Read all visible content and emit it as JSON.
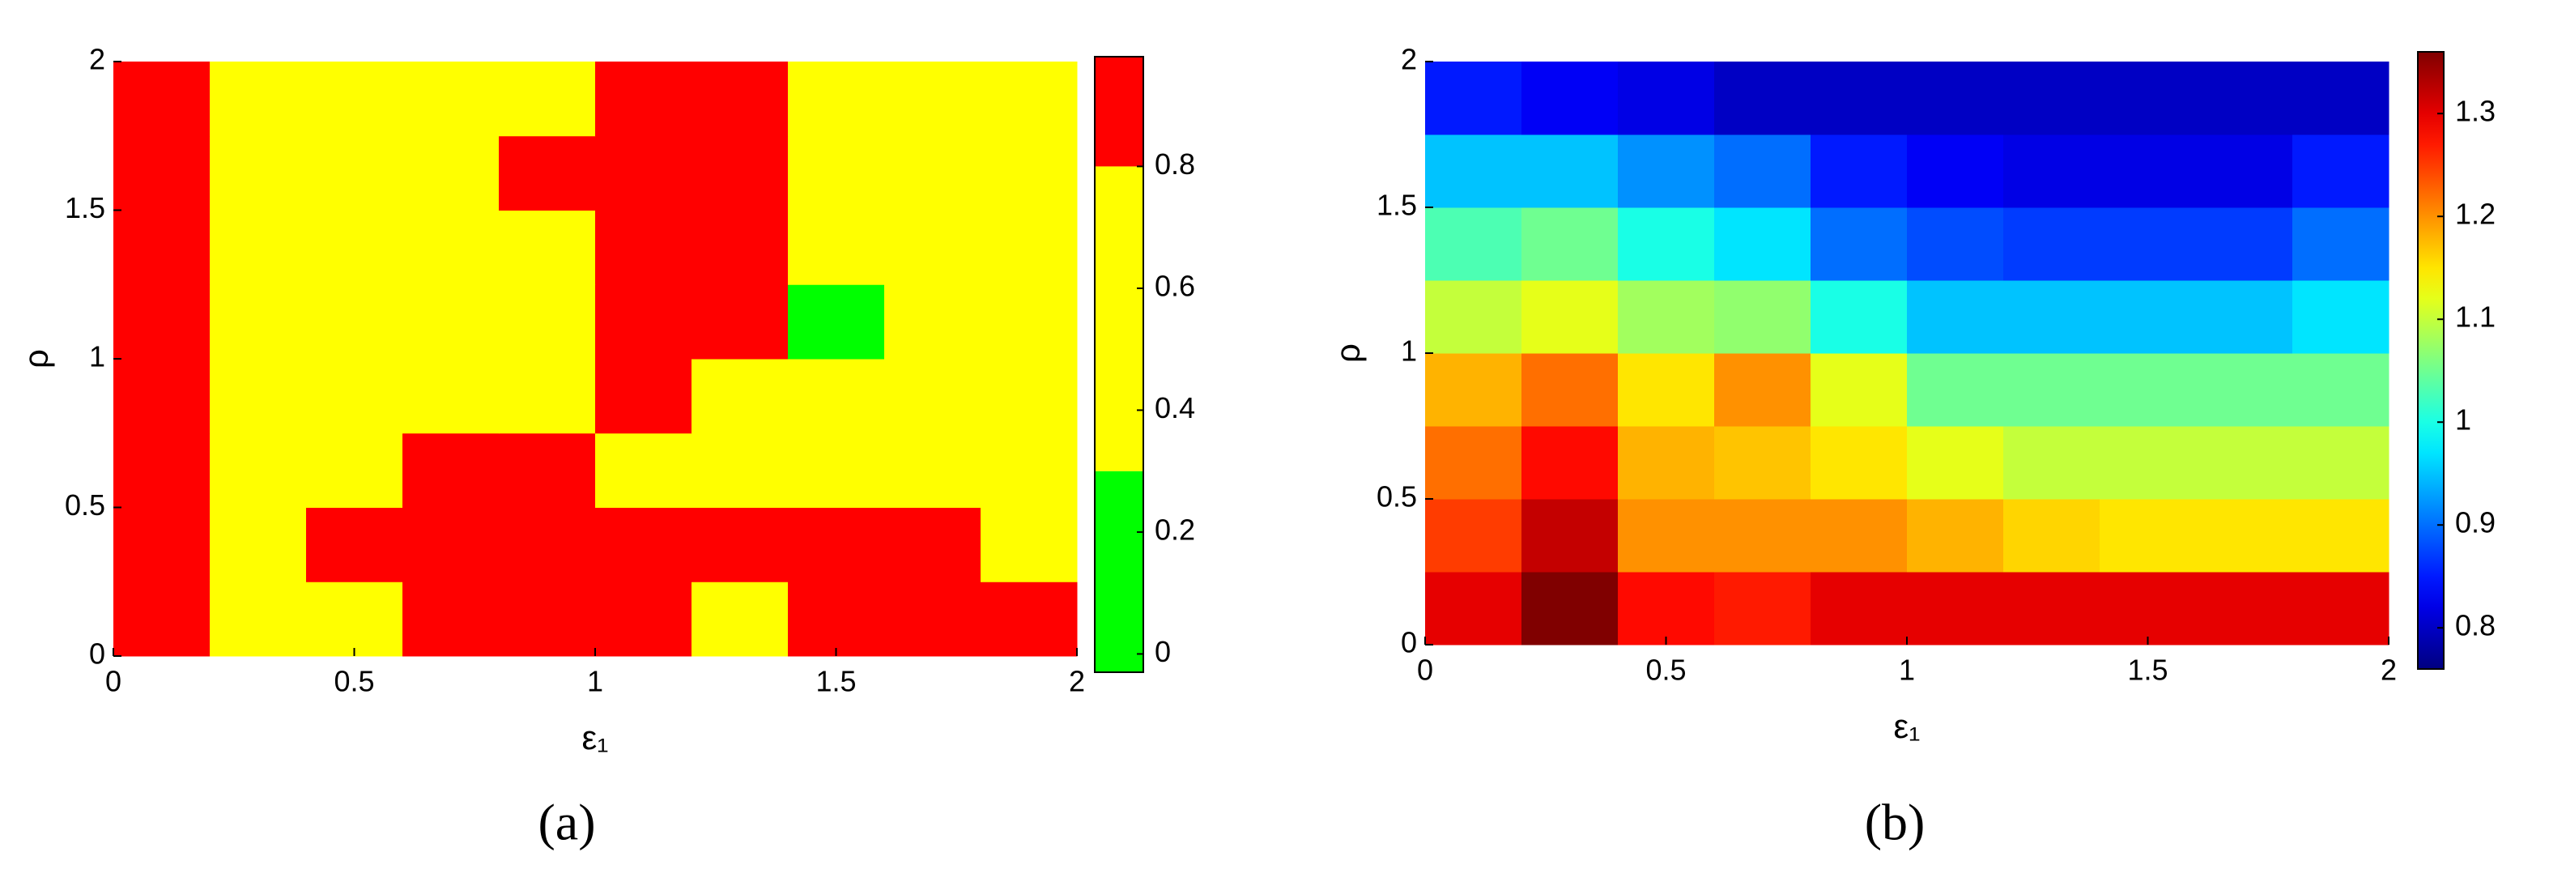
{
  "chart_data": [
    {
      "type": "heatmap",
      "panel_label": "(a)",
      "x_label": "ε₁",
      "y_label": "ρ",
      "xlim": [
        0,
        2
      ],
      "ylim": [
        0,
        2
      ],
      "xticks": [
        0,
        0.5,
        1,
        1.5,
        2
      ],
      "yticks": [
        0,
        0.5,
        1,
        1.5,
        2
      ],
      "colormap": "discrete",
      "levels": [
        0.3,
        0.8
      ],
      "colors": [
        "#00ff00",
        "#ffff00",
        "#ff0000"
      ],
      "clim": [
        -0.03,
        0.98
      ],
      "cticks": [
        0,
        0.2,
        0.4,
        0.6,
        0.8
      ],
      "z": [
        [
          0.9,
          0.6,
          0.6,
          0.9,
          0.9,
          0.9,
          0.6,
          0.9,
          0.9,
          0.9
        ],
        [
          0.9,
          0.6,
          0.9,
          0.9,
          0.9,
          0.9,
          0.9,
          0.9,
          0.9,
          0.6
        ],
        [
          0.9,
          0.6,
          0.6,
          0.9,
          0.9,
          0.6,
          0.6,
          0.6,
          0.6,
          0.6
        ],
        [
          0.9,
          0.6,
          0.6,
          0.6,
          0.6,
          0.9,
          0.6,
          0.6,
          0.6,
          0.6
        ],
        [
          0.9,
          0.6,
          0.6,
          0.6,
          0.6,
          0.9,
          0.9,
          0.1,
          0.6,
          0.6
        ],
        [
          0.9,
          0.6,
          0.6,
          0.6,
          0.6,
          0.9,
          0.9,
          0.6,
          0.6,
          0.6
        ],
        [
          0.9,
          0.6,
          0.6,
          0.6,
          0.9,
          0.9,
          0.9,
          0.6,
          0.6,
          0.6
        ],
        [
          0.9,
          0.6,
          0.6,
          0.6,
          0.6,
          0.9,
          0.9,
          0.6,
          0.6,
          0.6
        ]
      ]
    },
    {
      "type": "heatmap",
      "panel_label": "(b)",
      "x_label": "ε₁",
      "y_label": "ρ",
      "xlim": [
        0,
        2
      ],
      "ylim": [
        0,
        2
      ],
      "xticks": [
        0,
        0.5,
        1,
        1.5,
        2
      ],
      "yticks": [
        0,
        0.5,
        1,
        1.5,
        2
      ],
      "colormap": "jet",
      "clim": [
        0.76,
        1.36
      ],
      "cticks": [
        0.8,
        0.9,
        1,
        1.1,
        1.2,
        1.3
      ],
      "z": [
        [
          1.3,
          1.36,
          1.28,
          1.27,
          1.3,
          1.3,
          1.3,
          1.3,
          1.3,
          1.3
        ],
        [
          1.25,
          1.32,
          1.2,
          1.2,
          1.2,
          1.18,
          1.16,
          1.15,
          1.15,
          1.15
        ],
        [
          1.22,
          1.28,
          1.18,
          1.17,
          1.15,
          1.12,
          1.1,
          1.1,
          1.1,
          1.1
        ],
        [
          1.18,
          1.22,
          1.15,
          1.2,
          1.12,
          1.05,
          1.05,
          1.05,
          1.05,
          1.05
        ],
        [
          1.1,
          1.12,
          1.08,
          1.07,
          1.0,
          0.95,
          0.95,
          0.95,
          0.95,
          0.97
        ],
        [
          1.03,
          1.05,
          1.0,
          0.97,
          0.9,
          0.88,
          0.87,
          0.87,
          0.87,
          0.9
        ],
        [
          0.95,
          0.95,
          0.92,
          0.9,
          0.85,
          0.83,
          0.82,
          0.82,
          0.82,
          0.85
        ],
        [
          0.85,
          0.83,
          0.82,
          0.8,
          0.8,
          0.8,
          0.8,
          0.8,
          0.8,
          0.8
        ]
      ]
    }
  ]
}
